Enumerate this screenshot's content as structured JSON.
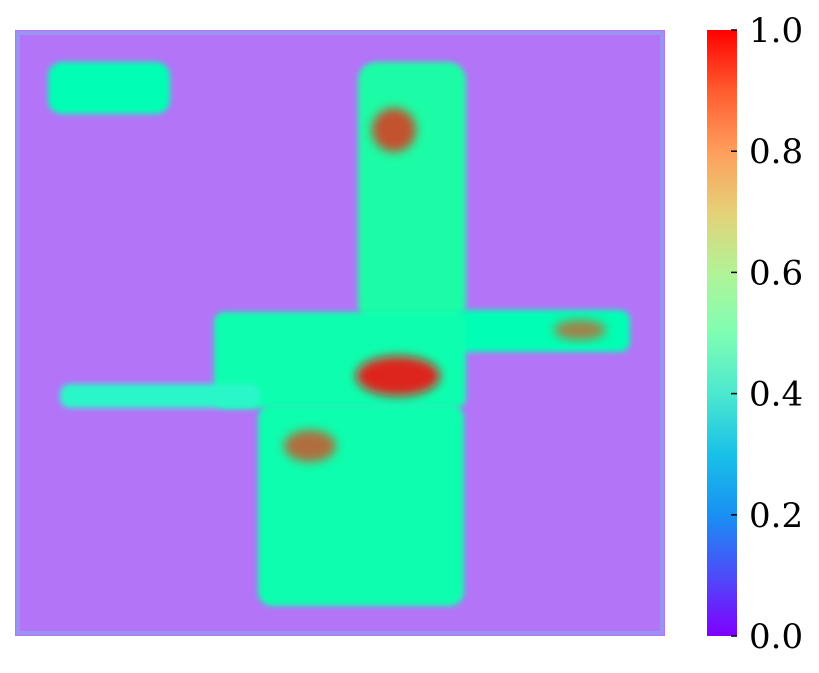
{
  "chart_data": {
    "type": "heatmap",
    "title": "",
    "xlabel": "",
    "ylabel": "",
    "colormap": "rainbow",
    "value_range": [
      0.0,
      1.0
    ],
    "grid": false,
    "legend": "colorbar-right",
    "colorbar": {
      "ticks": [
        0.0,
        0.2,
        0.4,
        0.6,
        0.8,
        1.0
      ],
      "tick_labels": [
        "0.0",
        "0.2",
        "0.4",
        "0.6",
        "0.8",
        "1.0"
      ]
    },
    "regions": [
      {
        "name": "background",
        "value": 0.15
      },
      {
        "name": "frame-border",
        "value": 0.22
      },
      {
        "name": "vertical-bar-upper",
        "value": 0.55
      },
      {
        "name": "horizontal-arm-right",
        "value": 0.5
      },
      {
        "name": "horizontal-band-center",
        "value": 0.52
      },
      {
        "name": "left-thin-arm",
        "value": 0.42
      },
      {
        "name": "vertical-bar-lower",
        "value": 0.52
      },
      {
        "name": "top-left-patch",
        "value": 0.5
      },
      {
        "name": "hotspot-center",
        "value": 0.98
      },
      {
        "name": "hotspot-top",
        "value": 0.92
      },
      {
        "name": "hotspot-right-arm",
        "value": 0.85
      },
      {
        "name": "hotspot-lower-left",
        "value": 0.88
      }
    ]
  }
}
